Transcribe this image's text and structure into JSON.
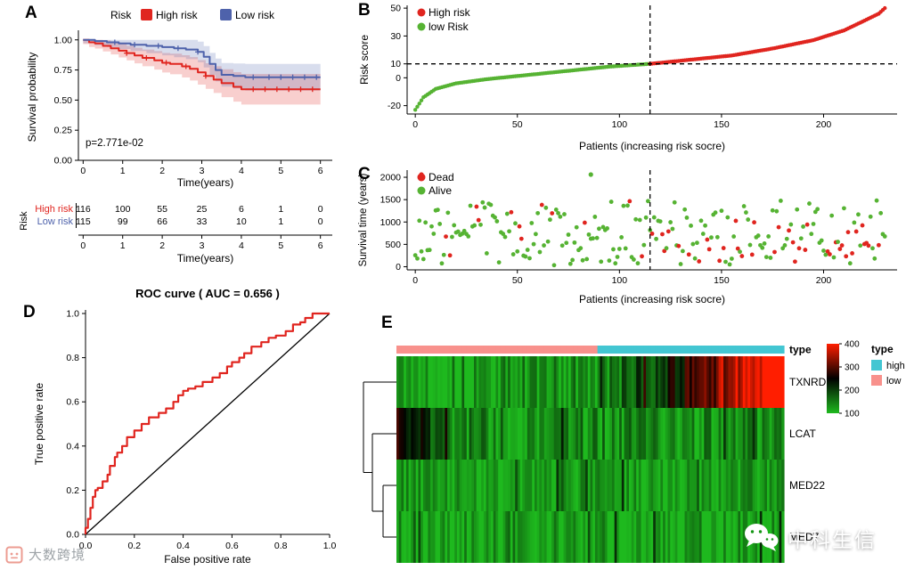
{
  "figure": {
    "panel_labels": {
      "A": "A",
      "B": "B",
      "C": "C",
      "D": "D",
      "E": "E"
    },
    "watermark_left": "大数跨境",
    "watermark_right": "中科生信"
  },
  "chart_data": [
    {
      "id": "km",
      "type": "line",
      "legend_title": "Risk",
      "xlabel": "Time(years)",
      "ylabel": "Survival probability",
      "xticks": [
        0,
        1,
        2,
        3,
        4,
        5,
        6
      ],
      "yticks": [
        "0.00",
        "0.25",
        "0.50",
        "0.75",
        "1.00"
      ],
      "pvalue": "p=2.771e-02",
      "series": [
        {
          "name": "High risk",
          "color": "#e0251f",
          "band_base": 0.035,
          "band_grow": 0.023,
          "steps": [
            [
              0,
              1.0
            ],
            [
              0.15,
              0.98
            ],
            [
              0.3,
              0.97
            ],
            [
              0.5,
              0.95
            ],
            [
              0.7,
              0.93
            ],
            [
              0.9,
              0.91
            ],
            [
              1.1,
              0.89
            ],
            [
              1.3,
              0.87
            ],
            [
              1.5,
              0.85
            ],
            [
              1.8,
              0.83
            ],
            [
              2.0,
              0.81
            ],
            [
              2.2,
              0.8
            ],
            [
              2.5,
              0.78
            ],
            [
              2.7,
              0.76
            ],
            [
              2.9,
              0.73
            ],
            [
              3.1,
              0.7
            ],
            [
              3.3,
              0.67
            ],
            [
              3.5,
              0.64
            ],
            [
              3.8,
              0.61
            ],
            [
              4.0,
              0.59
            ],
            [
              6.0,
              0.59
            ]
          ],
          "censor_x": [
            1.1,
            1.6,
            2.1,
            2.6,
            3.1,
            4.3,
            4.6,
            4.9,
            5.2,
            5.5,
            5.8
          ]
        },
        {
          "name": "Low risk",
          "color": "#4e62ab",
          "band_base": 0.028,
          "band_grow": 0.02,
          "steps": [
            [
              0,
              1.0
            ],
            [
              0.3,
              0.99
            ],
            [
              0.6,
              0.98
            ],
            [
              0.9,
              0.97
            ],
            [
              1.2,
              0.96
            ],
            [
              1.6,
              0.95
            ],
            [
              2.0,
              0.94
            ],
            [
              2.3,
              0.93
            ],
            [
              2.6,
              0.92
            ],
            [
              2.9,
              0.9
            ],
            [
              3.05,
              0.86
            ],
            [
              3.2,
              0.8
            ],
            [
              3.35,
              0.75
            ],
            [
              3.5,
              0.71
            ],
            [
              3.8,
              0.7
            ],
            [
              4.1,
              0.69
            ],
            [
              6.0,
              0.69
            ]
          ],
          "censor_x": [
            0.8,
            1.3,
            1.9,
            2.4,
            2.9,
            4.3,
            4.7,
            5.0,
            5.3,
            5.6,
            5.9
          ]
        }
      ],
      "risk_table": {
        "axis_label": "Risk",
        "xlabel": "Time(years)",
        "xticks": [
          0,
          1,
          2,
          3,
          4,
          5,
          6
        ],
        "rows": [
          {
            "name": "High risk",
            "color": "#e0251f",
            "values": [
              "116",
              "100",
              "55",
              "25",
              "6",
              "1",
              "0"
            ]
          },
          {
            "name": "Low risk",
            "color": "#4e62ab",
            "values": [
              "115",
              "99",
              "66",
              "33",
              "10",
              "1",
              "0"
            ]
          }
        ]
      }
    },
    {
      "id": "risk_score",
      "type": "scatter",
      "legend": [
        {
          "name": "High risk",
          "color": "#e0251f"
        },
        {
          "name": "low Risk",
          "color": "#56b333"
        }
      ],
      "xlabel": "Patients (increasing risk socre)",
      "ylabel": "Risk score",
      "xticks": [
        0,
        50,
        100,
        150,
        200
      ],
      "yticks": [
        -20,
        0,
        10,
        30,
        50
      ],
      "xlim": [
        -4,
        236
      ],
      "ylim": [
        -26,
        52
      ],
      "n": 231,
      "cutoff_index": 115,
      "threshold_value": 10,
      "score_anchors": [
        [
          0,
          -23
        ],
        [
          4,
          -14
        ],
        [
          10,
          -8
        ],
        [
          20,
          -4
        ],
        [
          35,
          -1
        ],
        [
          55,
          2
        ],
        [
          75,
          5
        ],
        [
          95,
          8
        ],
        [
          115,
          10
        ],
        [
          135,
          13
        ],
        [
          155,
          16
        ],
        [
          175,
          21
        ],
        [
          195,
          27
        ],
        [
          210,
          34
        ],
        [
          220,
          41
        ],
        [
          227,
          46
        ],
        [
          230,
          50
        ]
      ]
    },
    {
      "id": "survival_time",
      "type": "scatter",
      "legend": [
        {
          "name": "Dead",
          "color": "#e0251f"
        },
        {
          "name": "Alive",
          "color": "#56b333"
        }
      ],
      "xlabel": "Patients (increasing risk socre)",
      "ylabel": "Survival time (years)",
      "xticks": [
        0,
        50,
        100,
        150,
        200
      ],
      "yticks": [
        0,
        500,
        1000,
        1500,
        2000
      ],
      "xlim": [
        -4,
        236
      ],
      "ylim": [
        -70,
        2160
      ],
      "n": 231,
      "cutoff_index": 115,
      "seed": 9,
      "dead_fraction_left": 0.1,
      "dead_fraction_right": 0.3,
      "outliers": [
        {
          "x": 3,
          "y": 2060,
          "status": "Dead"
        },
        {
          "x": 86,
          "y": 2060,
          "status": "Alive"
        }
      ]
    },
    {
      "id": "roc",
      "type": "line",
      "title": "ROC curve ( AUC =  0.656 )",
      "xlabel": "False positive rate",
      "ylabel": "True positive rate",
      "xticks": [
        "0.0",
        "0.2",
        "0.4",
        "0.6",
        "0.8",
        "1.0"
      ],
      "yticks": [
        "0.0",
        "0.2",
        "0.4",
        "0.6",
        "0.8",
        "1.0"
      ],
      "curve_color": "#e0251f",
      "diagonal": true,
      "curve": [
        [
          0,
          0
        ],
        [
          0.01,
          0.03
        ],
        [
          0.02,
          0.07
        ],
        [
          0.03,
          0.12
        ],
        [
          0.04,
          0.17
        ],
        [
          0.05,
          0.2
        ],
        [
          0.07,
          0.21
        ],
        [
          0.09,
          0.24
        ],
        [
          0.1,
          0.27
        ],
        [
          0.12,
          0.31
        ],
        [
          0.13,
          0.35
        ],
        [
          0.15,
          0.37
        ],
        [
          0.17,
          0.4
        ],
        [
          0.2,
          0.44
        ],
        [
          0.23,
          0.47
        ],
        [
          0.26,
          0.5
        ],
        [
          0.3,
          0.53
        ],
        [
          0.33,
          0.55
        ],
        [
          0.36,
          0.57
        ],
        [
          0.38,
          0.6
        ],
        [
          0.4,
          0.63
        ],
        [
          0.42,
          0.65
        ],
        [
          0.45,
          0.66
        ],
        [
          0.48,
          0.67
        ],
        [
          0.52,
          0.69
        ],
        [
          0.55,
          0.71
        ],
        [
          0.58,
          0.73
        ],
        [
          0.6,
          0.76
        ],
        [
          0.63,
          0.78
        ],
        [
          0.65,
          0.8
        ],
        [
          0.68,
          0.82
        ],
        [
          0.72,
          0.85
        ],
        [
          0.75,
          0.87
        ],
        [
          0.78,
          0.89
        ],
        [
          0.82,
          0.9
        ],
        [
          0.85,
          0.92
        ],
        [
          0.88,
          0.95
        ],
        [
          0.9,
          0.96
        ],
        [
          0.93,
          0.98
        ],
        [
          0.95,
          1.0
        ],
        [
          1,
          1
        ]
      ]
    },
    {
      "id": "heatmap",
      "type": "heatmap",
      "genes": [
        "TXNRD1",
        "LCAT",
        "MED22",
        "MED7"
      ],
      "annotation_title": "type",
      "groups": [
        {
          "name": "low",
          "color": "#f8918c",
          "fraction": 0.52
        },
        {
          "name": "high",
          "color": "#43c6d2",
          "fraction": 0.48
        }
      ],
      "legend_title": "type",
      "legend_items": [
        {
          "name": "high",
          "color": "#43c6d2"
        },
        {
          "name": "low",
          "color": "#f8918c"
        }
      ],
      "colorbar_ticks": [
        "400",
        "300",
        "200",
        "100"
      ],
      "vmin": 100,
      "vmax": 400,
      "low_color": "#1eb91e",
      "mid_color": "#000000",
      "high_color": "#ff1e00",
      "n_cols": 160,
      "seed": 13,
      "rows": [
        {
          "gene": "TXNRD1",
          "base": 125,
          "noise": 50,
          "ramp_start": 0.5,
          "ramp_add": 330
        },
        {
          "gene": "LCAT",
          "base": 135,
          "noise": 50,
          "dark_left_until": 0.17,
          "dark_left_add": 130
        },
        {
          "gene": "MED22",
          "base": 120,
          "noise": 40
        },
        {
          "gene": "MED7",
          "base": 120,
          "noise": 40
        }
      ]
    }
  ]
}
